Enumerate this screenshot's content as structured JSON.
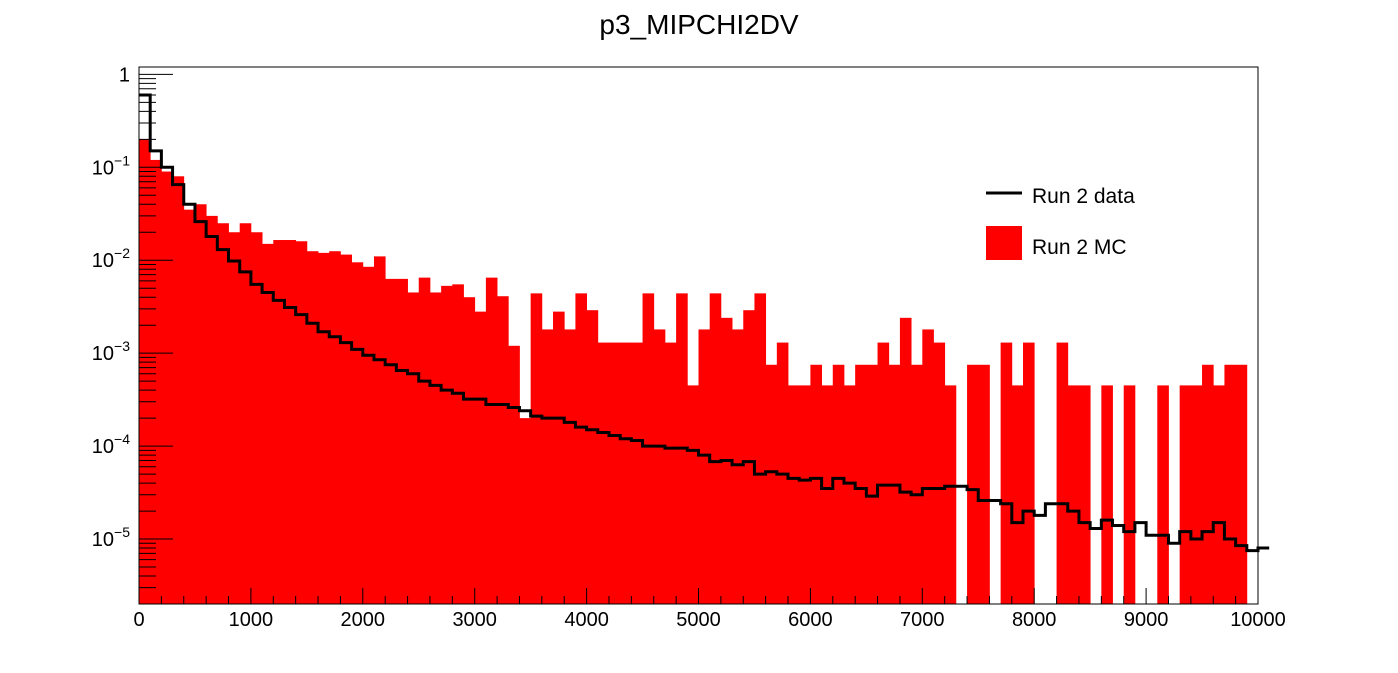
{
  "chart_data": {
    "type": "bar",
    "title": "p3_MIPCHI2DV",
    "xlabel": "",
    "ylabel": "",
    "xlim": [
      0,
      10000
    ],
    "ylim": [
      2e-06,
      1.2
    ],
    "y_scale": "log",
    "bin_width": 100,
    "x_ticks": [
      "0",
      "1000",
      "2000",
      "3000",
      "4000",
      "5000",
      "6000",
      "7000",
      "8000",
      "9000",
      "10000"
    ],
    "x_tick_values": [
      0,
      1000,
      2000,
      3000,
      4000,
      5000,
      6000,
      7000,
      8000,
      9000,
      10000
    ],
    "y_ticks": [
      {
        "value": 1,
        "base": "1",
        "exp": ""
      },
      {
        "value": 0.1,
        "base": "10",
        "exp": "−1"
      },
      {
        "value": 0.01,
        "base": "10",
        "exp": "−2"
      },
      {
        "value": 0.001,
        "base": "10",
        "exp": "−3"
      },
      {
        "value": 0.0001,
        "base": "10",
        "exp": "−4"
      },
      {
        "value": 1e-05,
        "base": "10",
        "exp": "−5"
      }
    ],
    "legend_position": "top-right",
    "series": [
      {
        "name": "Run 2 MC",
        "style": "filled-histogram",
        "color": "#ff0000",
        "values": [
          0.2,
          0.12,
          0.09,
          0.08,
          0.035,
          0.04,
          0.03,
          0.025,
          0.02,
          0.025,
          0.02,
          0.015,
          0.0165,
          0.0165,
          0.016,
          0.0125,
          0.012,
          0.0125,
          0.0115,
          0.0095,
          0.0085,
          0.011,
          0.0063,
          0.0063,
          0.0045,
          0.0065,
          0.0045,
          0.0053,
          0.0055,
          0.004,
          0.0028,
          0.0065,
          0.0041,
          0.0012,
          0.0002,
          0.0044,
          0.0018,
          0.0028,
          0.0018,
          0.0044,
          0.0029,
          0.0013,
          0.0013,
          0.0013,
          0.0013,
          0.0044,
          0.0018,
          0.0013,
          0.0044,
          0.00045,
          0.0018,
          0.0044,
          0.0024,
          0.0018,
          0.0029,
          0.0044,
          0.00075,
          0.0013,
          0.00045,
          0.00045,
          0.00075,
          0.00045,
          0.00075,
          0.00045,
          0.00075,
          0.00075,
          0.0013,
          0.00075,
          0.0024,
          0.00075,
          0.0018,
          0.0013,
          0.00045,
          0,
          0.00075,
          0.00075,
          0,
          0.0013,
          0.00045,
          0.0013,
          0,
          0,
          0.0013,
          0.00045,
          0.00045,
          0,
          0.00045,
          0,
          0.00045,
          0,
          0,
          0.00045,
          0,
          0.00045,
          0.00045,
          0.00075,
          0.00045,
          0.00075,
          0.00075,
          0,
          0
        ]
      },
      {
        "name": "Run 2 data",
        "style": "step-line",
        "color": "#000000",
        "values": [
          0.6,
          0.15,
          0.1,
          0.065,
          0.04,
          0.026,
          0.018,
          0.013,
          0.0098,
          0.0075,
          0.0055,
          0.0045,
          0.0037,
          0.0031,
          0.0026,
          0.0021,
          0.0017,
          0.0015,
          0.0013,
          0.0011,
          0.00095,
          0.00085,
          0.00075,
          0.00065,
          0.0006,
          0.0005,
          0.00045,
          0.0004,
          0.00037,
          0.00032,
          0.00032,
          0.00028,
          0.00028,
          0.00026,
          0.00024,
          0.00021,
          0.0002,
          0.0002,
          0.00018,
          0.00016,
          0.00015,
          0.00014,
          0.00013,
          0.00012,
          0.000115,
          0.0001,
          0.0001,
          9.5e-05,
          9.5e-05,
          9e-05,
          8e-05,
          6.8e-05,
          7e-05,
          6.3e-05,
          6.8e-05,
          5e-05,
          5.3e-05,
          5e-05,
          4.5e-05,
          4.3e-05,
          4.5e-05,
          3.5e-05,
          4.5e-05,
          4e-05,
          3.5e-05,
          2.9e-05,
          3.8e-05,
          3.8e-05,
          3.2e-05,
          3e-05,
          3.5e-05,
          3.5e-05,
          3.7e-05,
          3.7e-05,
          3.4e-05,
          2.6e-05,
          2.6e-05,
          2.4e-05,
          1.5e-05,
          2e-05,
          1.8e-05,
          2.4e-05,
          2.4e-05,
          2e-05,
          1.5e-05,
          1.3e-05,
          1.6e-05,
          1.4e-05,
          1.2e-05,
          1.5e-05,
          1.1e-05,
          1.1e-05,
          9e-06,
          1.2e-05,
          1e-05,
          1.2e-05,
          1.5e-05,
          1e-05,
          8.5e-06,
          7.5e-06,
          8e-06
        ]
      }
    ]
  }
}
